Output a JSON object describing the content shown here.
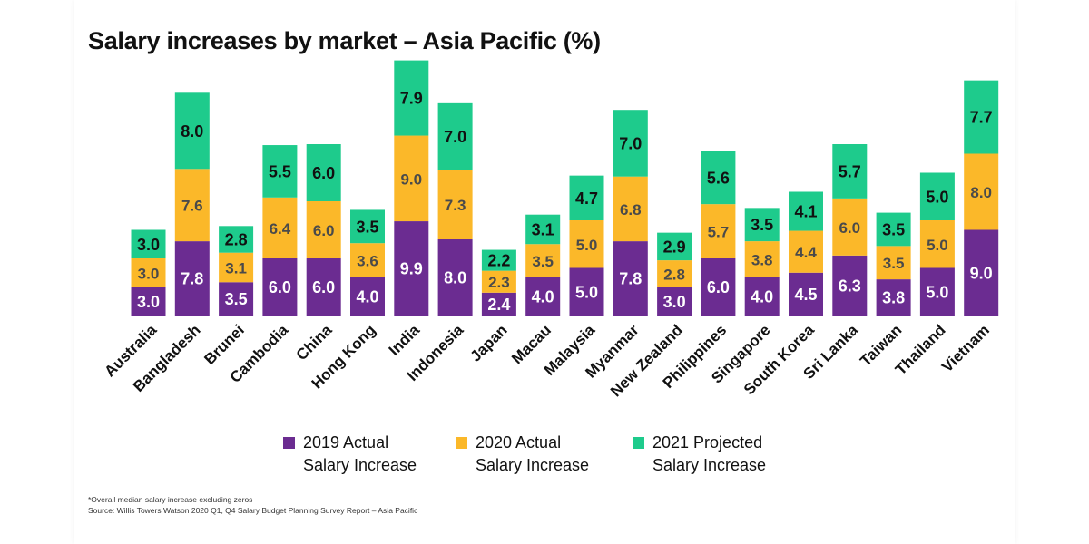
{
  "chart_data": {
    "type": "bar",
    "stacked": true,
    "title": "Salary increases by market – Asia Pacific (%)",
    "categories": [
      "Australia",
      "Bangladesh",
      "Brunei",
      "Cambodia",
      "China",
      "Hong Kong",
      "India",
      "Indonesia",
      "Japan",
      "Macau",
      "Malaysia",
      "Myanmar",
      "New Zealand",
      "Philippines",
      "Singapore",
      "South Korea",
      "Sri Lanka",
      "Taiwan",
      "Thailand",
      "Vietnam"
    ],
    "series": [
      {
        "name": "2019 Actual Salary Increase",
        "name_lines": [
          "2019 Actual",
          "Salary Increase"
        ],
        "color": "#6b2c91",
        "values": [
          3.0,
          7.8,
          3.5,
          6.0,
          6.0,
          4.0,
          9.9,
          8.0,
          2.4,
          4.0,
          5.0,
          7.8,
          3.0,
          6.0,
          4.0,
          4.5,
          6.3,
          3.8,
          5.0,
          9.0
        ]
      },
      {
        "name": "2020 Actual Salary Increase",
        "name_lines": [
          "2020 Actual",
          "Salary Increase"
        ],
        "color": "#fbb829",
        "values": [
          3.0,
          7.6,
          3.1,
          6.4,
          6.0,
          3.6,
          9.0,
          7.3,
          2.3,
          3.5,
          5.0,
          6.8,
          2.8,
          5.7,
          3.8,
          4.4,
          6.0,
          3.5,
          5.0,
          8.0
        ]
      },
      {
        "name": "2021 Projected Salary Increase",
        "name_lines": [
          "2021 Projected",
          "Salary Increase"
        ],
        "color": "#1ecb8c",
        "values": [
          3.0,
          8.0,
          2.8,
          5.5,
          6.0,
          3.5,
          7.9,
          7.0,
          2.2,
          3.1,
          4.7,
          7.0,
          2.9,
          5.6,
          3.5,
          4.1,
          5.7,
          3.5,
          5.0,
          7.7
        ]
      }
    ],
    "value_label_colors": [
      "#ffffff",
      "#4a4a4a",
      "#111111"
    ],
    "legend_position": "bottom",
    "grid": false,
    "ylim": [
      0,
      30
    ]
  },
  "notes": {
    "footnote": "*Overall median salary increase excluding zeros",
    "source": "Source: Willis Towers Watson 2020 Q1, Q4 Salary Budget Planning Survey Report – Asia Pacific"
  }
}
